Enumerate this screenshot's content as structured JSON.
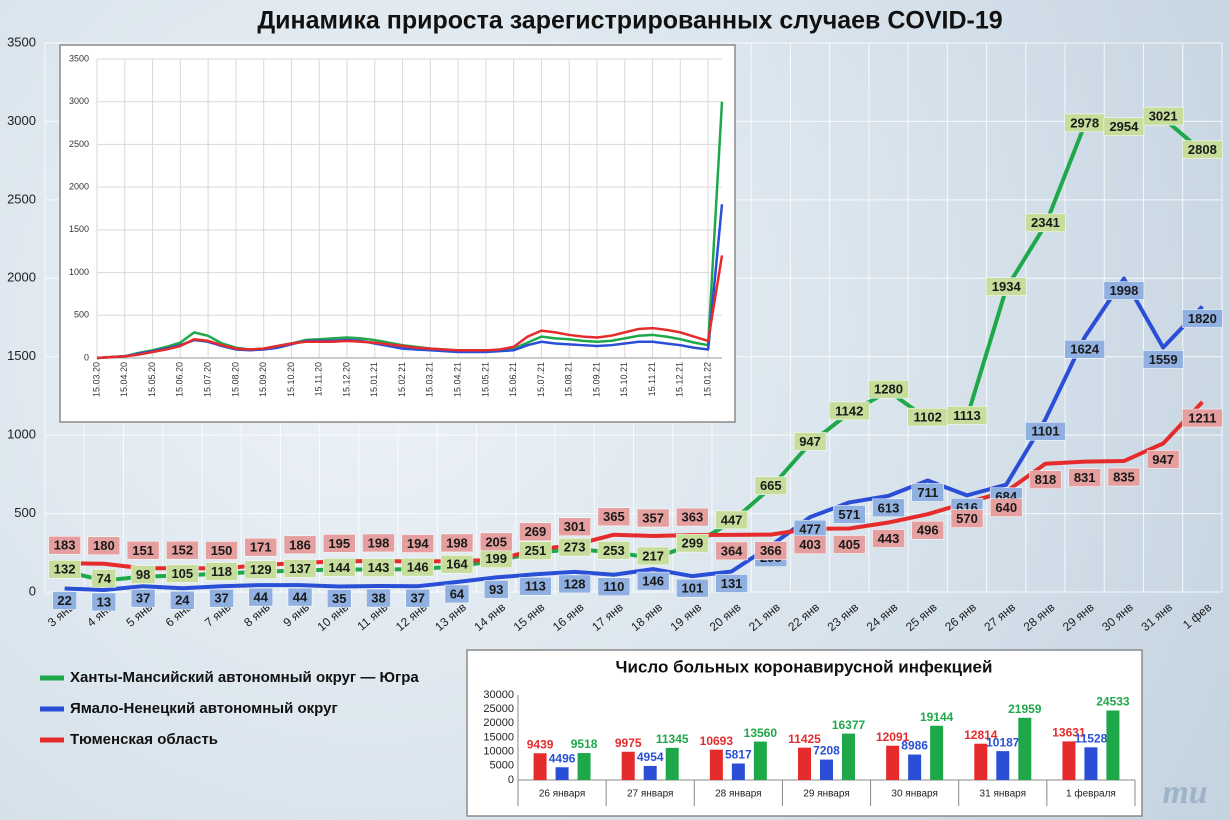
{
  "chart_data": [
    {
      "type": "line",
      "title": "Динамика прироста зарегистрированных случаев COVID-19",
      "categories": [
        "3 янв",
        "4 янв",
        "5 янв",
        "6 янв",
        "7 янв",
        "8 янв",
        "9 янв",
        "10 янв",
        "11 янв",
        "12 янв",
        "13 янв",
        "14 янв",
        "15 янв",
        "16 янв",
        "17 янв",
        "18 янв",
        "19 янв",
        "20 янв",
        "21 янв",
        "22 янв",
        "23 янв",
        "24 янв",
        "25 янв",
        "26 янв",
        "27 янв",
        "28 янв",
        "29 янв",
        "30 янв",
        "31 янв",
        "1 фев"
      ],
      "series": [
        {
          "name": "Ханты-Мансийский автономный округ — Югра",
          "color": "#1ea84a",
          "values": [
            132,
            74,
            98,
            105,
            118,
            129,
            137,
            144,
            143,
            146,
            164,
            199,
            251,
            273,
            253,
            217,
            299,
            447,
            665,
            947,
            1142,
            1280,
            1102,
            1113,
            1934,
            2341,
            2978,
            2954,
            3021,
            2808
          ]
        },
        {
          "name": "Ямало-Ненецкий автономный округ",
          "color": "#2a4fd6",
          "values": [
            22,
            13,
            37,
            24,
            37,
            44,
            44,
            35,
            38,
            37,
            64,
            93,
            113,
            128,
            110,
            146,
            101,
            131,
            295,
            477,
            571,
            613,
            711,
            616,
            684,
            1101,
            1624,
            1998,
            1559,
            1820
          ]
        },
        {
          "name": "Тюменская область",
          "color": "#e52b2b",
          "values": [
            183,
            180,
            151,
            152,
            150,
            171,
            186,
            195,
            198,
            194,
            198,
            205,
            269,
            301,
            365,
            357,
            363,
            364,
            366,
            403,
            405,
            443,
            496,
            570,
            640,
            818,
            831,
            835,
            947,
            1211
          ]
        }
      ],
      "ylim": [
        0,
        3500
      ],
      "yticks": [
        0,
        500,
        1000,
        1500,
        2000,
        2500,
        3000,
        3500
      ],
      "grid": true,
      "legend": "bottom-left"
    },
    {
      "type": "line",
      "categories": [
        "15.03.20",
        null,
        "15.04.20",
        null,
        "15.05.20",
        null,
        "15.06.20",
        null,
        "15.07.20",
        null,
        "15.08.20",
        null,
        "15.09.20",
        null,
        "15.10.20",
        null,
        "15.11.20",
        null,
        "15.12.20",
        null,
        "15.01.21",
        null,
        "15.02.21",
        null,
        "15.03.21",
        null,
        "15.04.21",
        null,
        "15.05.21",
        null,
        "15.06.21",
        null,
        "15.07.21",
        null,
        "15.08.21",
        null,
        "15.09.21",
        null,
        "15.10.21",
        null,
        "15.11.21",
        null,
        "15.12.21",
        null,
        "15.01.22",
        null
      ],
      "series": [
        {
          "color": "#1ea84a",
          "values": [
            0,
            10,
            20,
            60,
            90,
            130,
            180,
            300,
            260,
            170,
            120,
            100,
            110,
            140,
            170,
            210,
            220,
            230,
            240,
            230,
            210,
            180,
            150,
            130,
            110,
            100,
            90,
            80,
            80,
            90,
            110,
            180,
            250,
            230,
            220,
            200,
            190,
            200,
            230,
            260,
            270,
            250,
            220,
            180,
            150,
            3000
          ]
        },
        {
          "color": "#2a4fd6",
          "values": [
            0,
            10,
            20,
            50,
            80,
            110,
            150,
            210,
            190,
            140,
            100,
            90,
            100,
            120,
            160,
            200,
            200,
            200,
            210,
            200,
            170,
            140,
            110,
            100,
            90,
            80,
            70,
            70,
            70,
            80,
            90,
            150,
            190,
            170,
            160,
            150,
            140,
            150,
            170,
            190,
            190,
            170,
            150,
            120,
            100,
            1800
          ]
        },
        {
          "color": "#e52b2b",
          "values": [
            0,
            10,
            20,
            40,
            70,
            100,
            140,
            220,
            200,
            150,
            110,
            100,
            110,
            140,
            170,
            190,
            190,
            190,
            200,
            190,
            180,
            160,
            140,
            120,
            110,
            100,
            90,
            90,
            90,
            100,
            130,
            250,
            320,
            300,
            270,
            250,
            240,
            260,
            300,
            340,
            350,
            330,
            300,
            250,
            200,
            1200
          ]
        }
      ],
      "ylim": [
        0,
        3500
      ],
      "yticks": [
        0,
        500,
        1000,
        1500,
        2000,
        2500,
        3000,
        3500
      ],
      "grid": true
    },
    {
      "type": "bar",
      "title": "Число больных коронавирусной инфекцией",
      "categories": [
        "26 января",
        "27 января",
        "28 января",
        "29 января",
        "30 января",
        "31 января",
        "1 февраля"
      ],
      "series": [
        {
          "color": "#e52b2b",
          "values": [
            9439,
            9975,
            10693,
            11425,
            12091,
            12814,
            13631
          ]
        },
        {
          "color": "#2a4fd6",
          "values": [
            4496,
            4954,
            5817,
            7208,
            8986,
            10187,
            11528
          ]
        },
        {
          "color": "#1ea84a",
          "values": [
            9518,
            11345,
            13560,
            16377,
            19144,
            21959,
            24533
          ]
        }
      ],
      "ylim": [
        0,
        30000
      ],
      "yticks": [
        0,
        5000,
        10000,
        15000,
        20000,
        25000,
        30000
      ],
      "grid": false
    }
  ],
  "watermark": "mu"
}
